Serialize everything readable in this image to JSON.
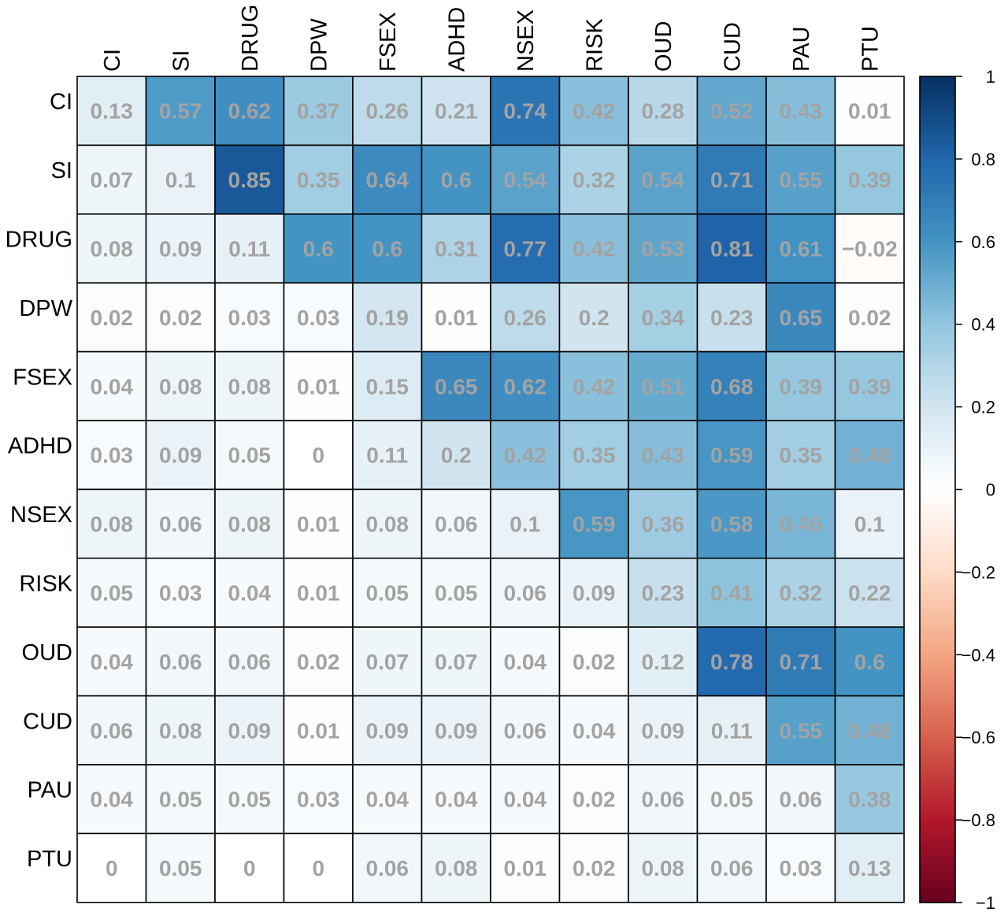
{
  "chart_data": {
    "type": "heatmap",
    "variables": [
      "CI",
      "SI",
      "DRUG",
      "DPW",
      "FSEX",
      "ADHD",
      "NSEX",
      "RISK",
      "OUD",
      "CUD",
      "PAU",
      "PTU"
    ],
    "values": [
      [
        0.13,
        0.57,
        0.62,
        0.37,
        0.26,
        0.21,
        0.74,
        0.42,
        0.28,
        0.52,
        0.43,
        0.01
      ],
      [
        0.07,
        0.1,
        0.85,
        0.35,
        0.64,
        0.6,
        0.54,
        0.32,
        0.54,
        0.71,
        0.55,
        0.39
      ],
      [
        0.08,
        0.09,
        0.11,
        0.6,
        0.6,
        0.31,
        0.77,
        0.42,
        0.53,
        0.81,
        0.61,
        -0.02
      ],
      [
        0.02,
        0.02,
        0.03,
        0.03,
        0.19,
        0.01,
        0.26,
        0.2,
        0.34,
        0.23,
        0.65,
        0.02
      ],
      [
        0.04,
        0.08,
        0.08,
        0.01,
        0.15,
        0.65,
        0.62,
        0.42,
        0.51,
        0.68,
        0.39,
        0.39
      ],
      [
        0.03,
        0.09,
        0.05,
        0,
        0.11,
        0.2,
        0.42,
        0.35,
        0.43,
        0.59,
        0.35,
        0.48
      ],
      [
        0.08,
        0.06,
        0.08,
        0.01,
        0.08,
        0.06,
        0.1,
        0.59,
        0.36,
        0.58,
        0.46,
        0.1
      ],
      [
        0.05,
        0.03,
        0.04,
        0.01,
        0.05,
        0.05,
        0.06,
        0.09,
        0.23,
        0.41,
        0.32,
        0.22
      ],
      [
        0.04,
        0.06,
        0.06,
        0.02,
        0.07,
        0.07,
        0.04,
        0.02,
        0.12,
        0.78,
        0.71,
        0.6
      ],
      [
        0.06,
        0.08,
        0.09,
        0.01,
        0.09,
        0.09,
        0.06,
        0.04,
        0.09,
        0.11,
        0.55,
        0.48
      ],
      [
        0.04,
        0.05,
        0.05,
        0.03,
        0.04,
        0.04,
        0.04,
        0.02,
        0.06,
        0.05,
        0.06,
        0.38
      ],
      [
        0,
        0.05,
        0,
        0,
        0.06,
        0.08,
        0.01,
        0.02,
        0.08,
        0.06,
        0.03,
        0.13
      ]
    ],
    "colorbar": {
      "range": [
        -1,
        1
      ],
      "ticks": [
        1,
        0.8,
        0.6,
        0.4,
        0.2,
        0,
        -0.2,
        -0.4,
        -0.6,
        -0.8,
        -1
      ],
      "tick_labels": [
        "1",
        "0.8",
        "0.6",
        "0.4",
        "0.2",
        "0",
        "−0.2",
        "−0.4",
        "−0.6",
        "−0.8",
        "−1"
      ],
      "colormap": [
        "#67001f",
        "#b2182b",
        "#d6604d",
        "#f4a582",
        "#fddbc7",
        "#ffffff",
        "#d1e5f0",
        "#92c5de",
        "#4393c3",
        "#2166ac",
        "#053061"
      ],
      "position": "right"
    },
    "value_text_color": "#a3a3a3",
    "grid": true
  }
}
